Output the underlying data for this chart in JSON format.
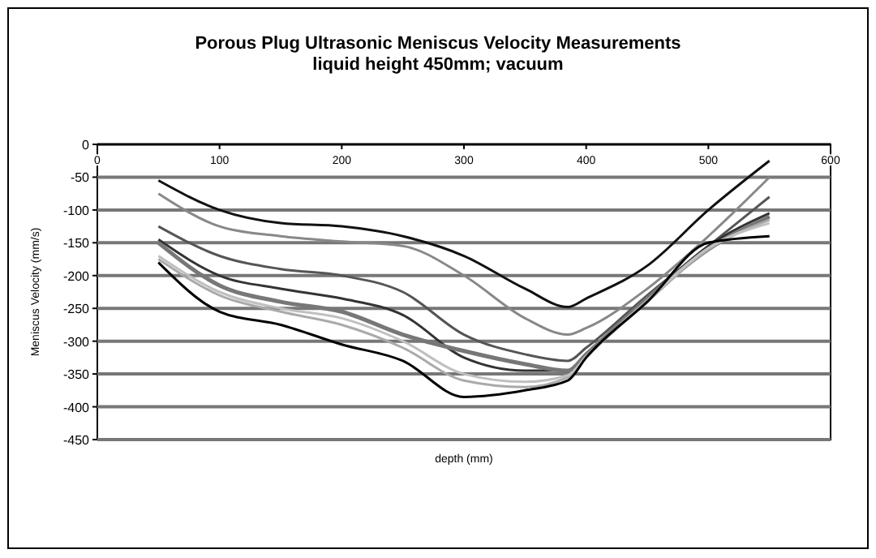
{
  "chart_data": {
    "type": "line",
    "title": "Porous Plug Ultrasonic Meniscus Velocity Measurements",
    "subtitle": "liquid height 450mm; vacuum",
    "xlabel": "depth (mm)",
    "ylabel": "Meniscus Velocity (mm/s)",
    "x": [
      50,
      100,
      150,
      200,
      250,
      300,
      350,
      385,
      400,
      450,
      500,
      550
    ],
    "xlim": [
      0,
      600
    ],
    "xticks": [
      0,
      100,
      200,
      300,
      400,
      500,
      600
    ],
    "ylim": [
      -450,
      0
    ],
    "yticks": [
      -450,
      -400,
      -350,
      -300,
      -250,
      -200,
      -150,
      -100,
      -50,
      0
    ],
    "grid": "y",
    "marker": "none",
    "line_style": "solid",
    "series": [
      {
        "color": "#111111",
        "values": [
          -55,
          -100,
          -120,
          -125,
          -140,
          -170,
          -220,
          -248,
          -235,
          -185,
          -100,
          -25
        ]
      },
      {
        "color": "#888888",
        "values": [
          -75,
          -125,
          -140,
          -148,
          -155,
          -200,
          -265,
          -290,
          -280,
          -220,
          -140,
          -50
        ]
      },
      {
        "color": "#555555",
        "values": [
          -125,
          -170,
          -190,
          -200,
          -225,
          -290,
          -320,
          -330,
          -310,
          -230,
          -155,
          -80
        ]
      },
      {
        "color": "#333333",
        "values": [
          -145,
          -200,
          -220,
          -235,
          -260,
          -325,
          -345,
          -345,
          -320,
          -235,
          -155,
          -105
        ]
      },
      {
        "color": "#777777",
        "values": [
          -150,
          -215,
          -240,
          -255,
          -290,
          -315,
          -335,
          -345,
          -320,
          -235,
          -160,
          -110
        ]
      },
      {
        "color": "#aaaaaa",
        "values": [
          -175,
          -230,
          -255,
          -275,
          -310,
          -360,
          -370,
          -355,
          -325,
          -240,
          -160,
          -115
        ]
      },
      {
        "color": "#c0c0c0",
        "values": [
          -170,
          -225,
          -250,
          -265,
          -300,
          -350,
          -362,
          -352,
          -323,
          -238,
          -158,
          -120
        ]
      },
      {
        "color": "#000000",
        "values": [
          -180,
          -255,
          -275,
          -305,
          -330,
          -385,
          -375,
          -360,
          -325,
          -240,
          -150,
          -140
        ]
      }
    ]
  }
}
